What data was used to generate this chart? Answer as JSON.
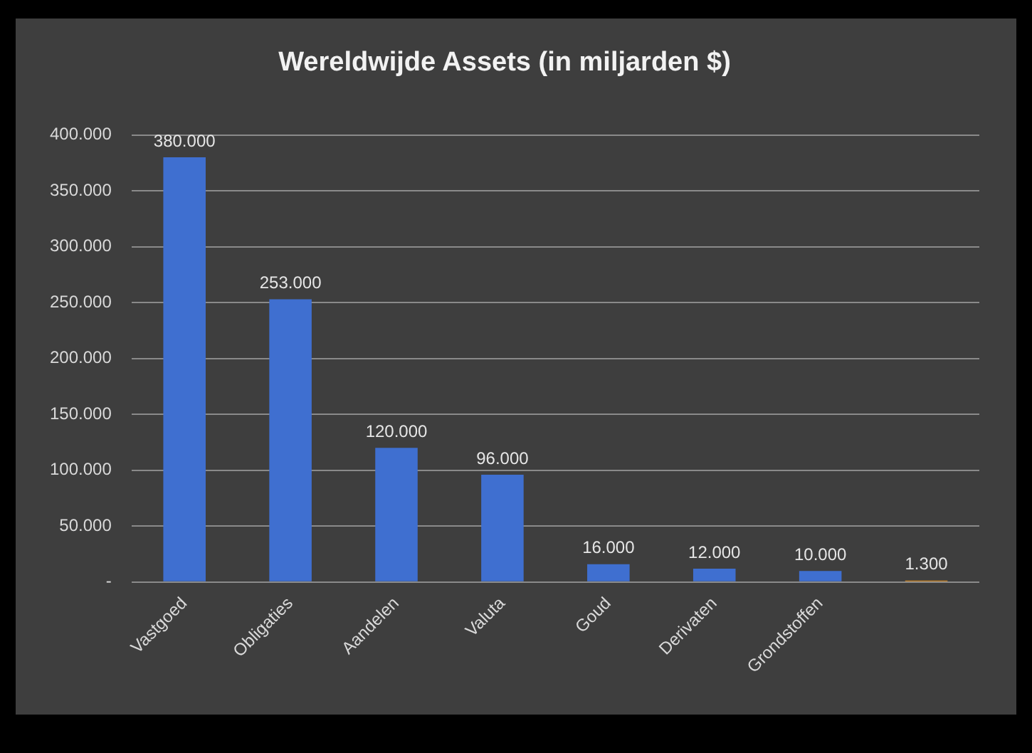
{
  "chart_data": {
    "type": "bar",
    "title": "Wereldwijde Assets (in miljarden $)",
    "categories": [
      "Vastgoed",
      "Obligaties",
      "Aandelen",
      "Valuta",
      "Goud",
      "Derivaten",
      "Grondstoffen",
      null
    ],
    "values": [
      380000,
      253000,
      120000,
      96000,
      16000,
      12000,
      10000,
      1300
    ],
    "colors": [
      "#3f6fd0",
      "#3f6fd0",
      "#3f6fd0",
      "#3f6fd0",
      "#3f6fd0",
      "#3f6fd0",
      "#3f6fd0",
      "#f0961e"
    ],
    "value_labels": [
      "380.000",
      "253.000",
      "120.000",
      "96.000",
      "16.000",
      "12.000",
      "10.000",
      "1.300"
    ],
    "ylim": [
      0,
      400000
    ],
    "yticks": [
      {
        "value": 0,
        "label": "-"
      },
      {
        "value": 50000,
        "label": "50.000"
      },
      {
        "value": 100000,
        "label": "100.000"
      },
      {
        "value": 150000,
        "label": "150.000"
      },
      {
        "value": 200000,
        "label": "200.000"
      },
      {
        "value": 250000,
        "label": "250.000"
      },
      {
        "value": 300000,
        "label": "300.000"
      },
      {
        "value": 350000,
        "label": "350.000"
      },
      {
        "value": 400000,
        "label": "400.000"
      }
    ],
    "grid": "y"
  }
}
